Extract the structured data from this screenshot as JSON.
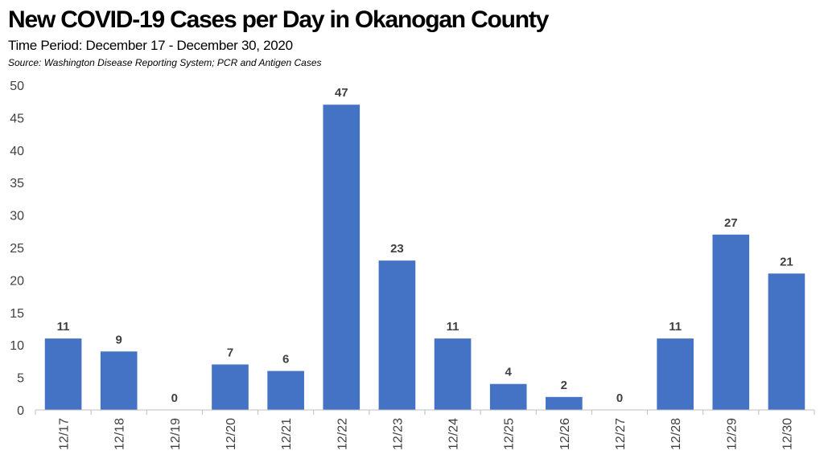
{
  "title": "New COVID-19 Cases per Day in Okanogan County",
  "subtitle": "Time Period: December 17 - December 30, 2020",
  "source": "Source: Washington Disease Reporting System; PCR and Antigen Cases",
  "colors": {
    "bar": "#4472C4",
    "axis": "#BFBFBF",
    "text": "#404040"
  },
  "chart_data": {
    "type": "bar",
    "title": "New COVID-19 Cases per Day in Okanogan County",
    "xlabel": "",
    "ylabel": "",
    "categories": [
      "12/17",
      "12/18",
      "12/19",
      "12/20",
      "12/21",
      "12/22",
      "12/23",
      "12/24",
      "12/25",
      "12/26",
      "12/27",
      "12/28",
      "12/29",
      "12/30"
    ],
    "values": [
      11,
      9,
      0,
      7,
      6,
      47,
      23,
      11,
      4,
      2,
      0,
      11,
      27,
      21
    ],
    "ylim": [
      0,
      50
    ],
    "yticks": [
      "0",
      "5",
      "10",
      "15",
      "20",
      "25",
      "30",
      "35",
      "40",
      "45",
      "50"
    ],
    "grid": false,
    "legend": "none"
  }
}
